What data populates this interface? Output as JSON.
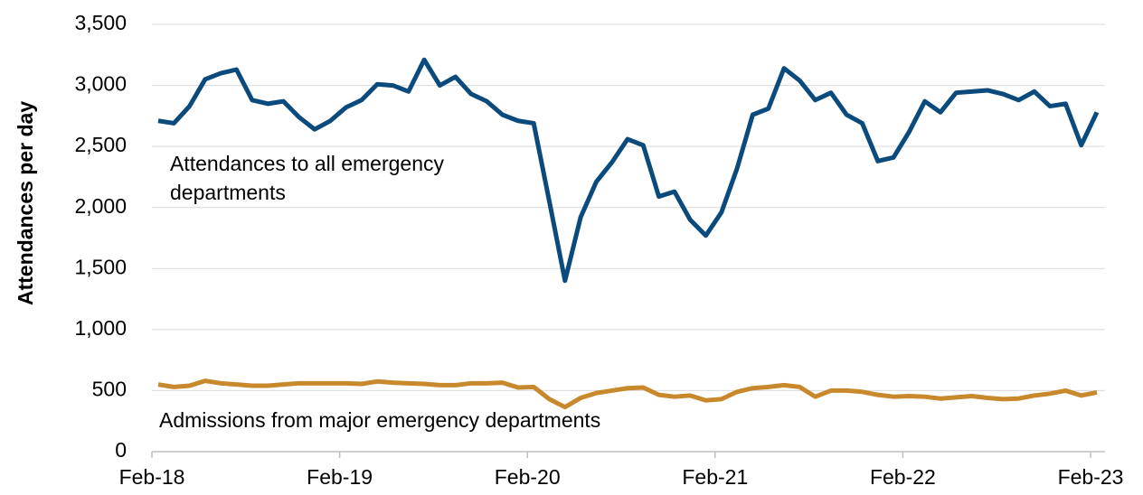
{
  "chart_data": {
    "type": "line",
    "y_axis_label": "Attendances per day",
    "categories": [
      "Feb-18",
      null,
      null,
      null,
      null,
      null,
      null,
      null,
      null,
      null,
      null,
      null,
      "Feb-19",
      null,
      null,
      null,
      null,
      null,
      null,
      null,
      null,
      null,
      null,
      null,
      "Feb-20",
      null,
      null,
      null,
      null,
      null,
      null,
      null,
      null,
      null,
      null,
      null,
      "Feb-21",
      null,
      null,
      null,
      null,
      null,
      null,
      null,
      null,
      null,
      null,
      null,
      "Feb-22",
      null,
      null,
      null,
      null,
      null,
      null,
      null,
      null,
      null,
      null,
      null,
      "Feb-23"
    ],
    "series": [
      {
        "name": "Attendances to all emergency departments",
        "color": "#0b4a7c",
        "values": [
          2710,
          2690,
          2830,
          3050,
          3100,
          3130,
          2880,
          2850,
          2870,
          2740,
          2640,
          2710,
          2820,
          2880,
          3010,
          3000,
          2950,
          3210,
          3000,
          3070,
          2930,
          2870,
          2760,
          2710,
          2690,
          2050,
          1400,
          1920,
          2210,
          2370,
          2560,
          2510,
          2090,
          2130,
          1900,
          1770,
          1960,
          2320,
          2760,
          2810,
          3140,
          3040,
          2880,
          2940,
          2760,
          2690,
          2380,
          2410,
          2620,
          2870,
          2780,
          2940,
          2950,
          2960,
          2930,
          2880,
          2950,
          2830,
          2850,
          2510,
          2780
        ]
      },
      {
        "name": "Admissions from major emergency departments",
        "color": "#c8892c",
        "values": [
          550,
          530,
          540,
          580,
          560,
          550,
          540,
          540,
          550,
          560,
          560,
          560,
          560,
          555,
          575,
          565,
          560,
          555,
          545,
          545,
          560,
          560,
          565,
          525,
          530,
          430,
          365,
          440,
          480,
          500,
          520,
          525,
          465,
          450,
          460,
          420,
          430,
          490,
          520,
          530,
          545,
          530,
          450,
          500,
          500,
          490,
          465,
          450,
          455,
          450,
          435,
          445,
          455,
          440,
          430,
          435,
          460,
          475,
          500,
          460,
          485
        ]
      }
    ],
    "annotations": [
      {
        "lines": [
          "Attendances to all emergency",
          "departments"
        ]
      },
      {
        "lines": [
          "Admissions from major emergency departments"
        ]
      }
    ],
    "ylim": [
      0,
      3500
    ],
    "yticks": [
      0,
      500,
      {
        "value": 1000,
        "label": "1,000"
      },
      {
        "value": 1500,
        "label": "1,500"
      },
      {
        "value": 2000,
        "label": "2,000"
      },
      {
        "value": 2500,
        "label": "2,500"
      },
      {
        "value": 3000,
        "label": "3,000"
      },
      {
        "value": 3500,
        "label": "3,500"
      }
    ],
    "grid": true
  }
}
